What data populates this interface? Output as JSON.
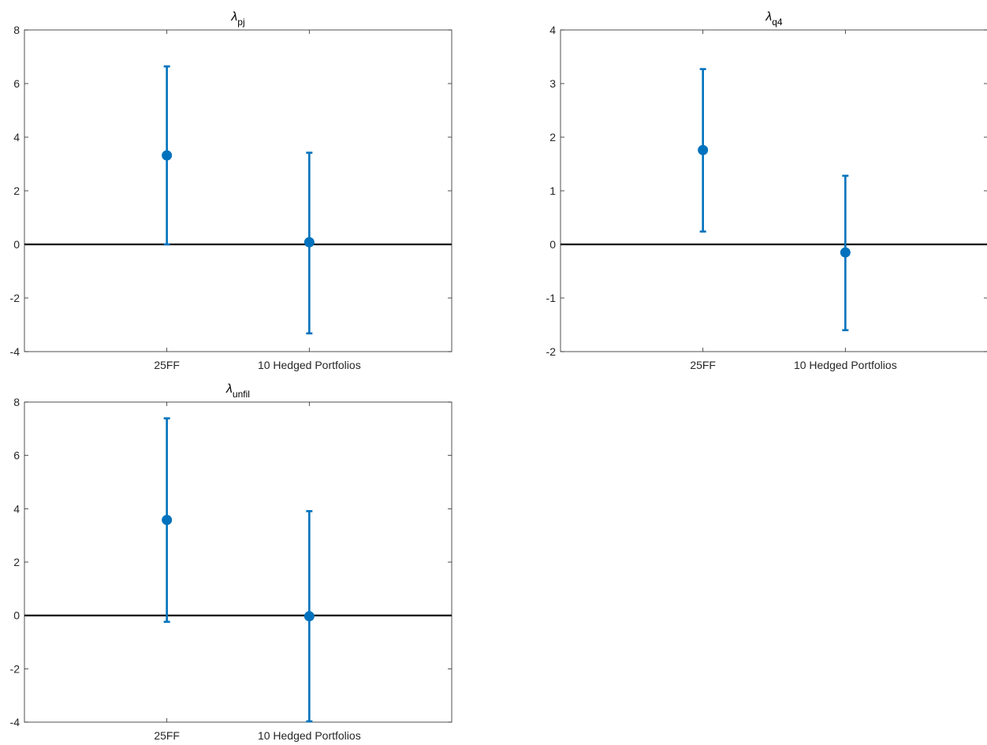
{
  "colors": {
    "series": "#0072BD",
    "zero_line": "#000000",
    "axes": "#262626",
    "background": "#ffffff"
  },
  "chart_data": [
    {
      "type": "scatter",
      "error_bars": true,
      "title": "λ",
      "title_subscript": "pj",
      "categories": [
        "25FF",
        "10 Hedged Portfolios"
      ],
      "x": [
        1,
        2
      ],
      "values": [
        3.32,
        0.08
      ],
      "lower": [
        0.0,
        -3.32
      ],
      "upper": [
        6.64,
        3.42
      ],
      "xlim": [
        0,
        3
      ],
      "ylim": [
        -4,
        8
      ],
      "yticks": [
        -4,
        -2,
        0,
        2,
        4,
        6,
        8
      ],
      "xlabel": "",
      "ylabel": "",
      "reference_line": 0,
      "grid": false
    },
    {
      "type": "scatter",
      "error_bars": true,
      "title": "λ",
      "title_subscript": "q4",
      "categories": [
        "25FF",
        "10 Hedged Portfolios"
      ],
      "x": [
        1,
        2
      ],
      "values": [
        1.76,
        -0.15
      ],
      "lower": [
        0.24,
        -1.6
      ],
      "upper": [
        3.27,
        1.28
      ],
      "xlim": [
        0,
        3
      ],
      "ylim": [
        -2,
        4
      ],
      "yticks": [
        -2,
        -1,
        0,
        1,
        2,
        3,
        4
      ],
      "xlabel": "",
      "ylabel": "",
      "reference_line": 0,
      "grid": false
    },
    {
      "type": "scatter",
      "error_bars": true,
      "title": "λ",
      "title_subscript": "unfil",
      "categories": [
        "25FF",
        "10 Hedged Portfolios"
      ],
      "x": [
        1,
        2
      ],
      "values": [
        3.58,
        -0.03
      ],
      "lower": [
        -0.24,
        -3.97
      ],
      "upper": [
        7.39,
        3.91
      ],
      "xlim": [
        0,
        3
      ],
      "ylim": [
        -4,
        8
      ],
      "yticks": [
        -4,
        -2,
        0,
        2,
        4,
        6,
        8
      ],
      "xlabel": "",
      "ylabel": "",
      "reference_line": 0,
      "grid": false
    }
  ]
}
